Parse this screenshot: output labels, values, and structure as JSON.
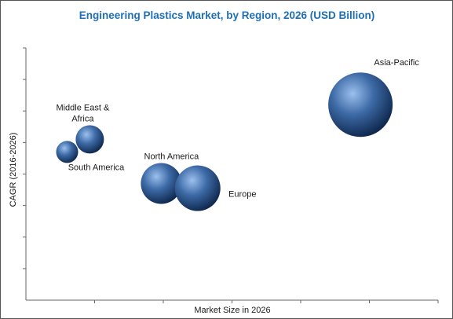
{
  "colors": {
    "title": "#1f6fb5",
    "axis": "#666666",
    "bubble_light": "#9cc0ee",
    "bubble_mid": "#3d6aa6",
    "bubble_dark": "#0b2347"
  },
  "chart_data": {
    "type": "bubble",
    "title": "Engineering Plastics Market, by Region, 2026 (USD Billion)",
    "xlabel": "Market Size in 2026",
    "ylabel": "CAGR (2016-2026)",
    "x_ticks": 6,
    "y_ticks": 8,
    "grid": false,
    "points": [
      {
        "label": "Asia-Pacific",
        "label_line2": "",
        "x": 4.87,
        "y": 6.2,
        "size": 41
      },
      {
        "label": "Middle East &",
        "label_line2": "Africa",
        "x": 0.93,
        "y": 5.1,
        "size": 18
      },
      {
        "label": "South America",
        "label_line2": "",
        "x": 0.6,
        "y": 4.7,
        "size": 14
      },
      {
        "label": "North America",
        "label_line2": "",
        "x": 1.97,
        "y": 3.7,
        "size": 26
      },
      {
        "label": "Europe",
        "label_line2": "",
        "x": 2.5,
        "y": 3.55,
        "size": 29
      }
    ]
  }
}
